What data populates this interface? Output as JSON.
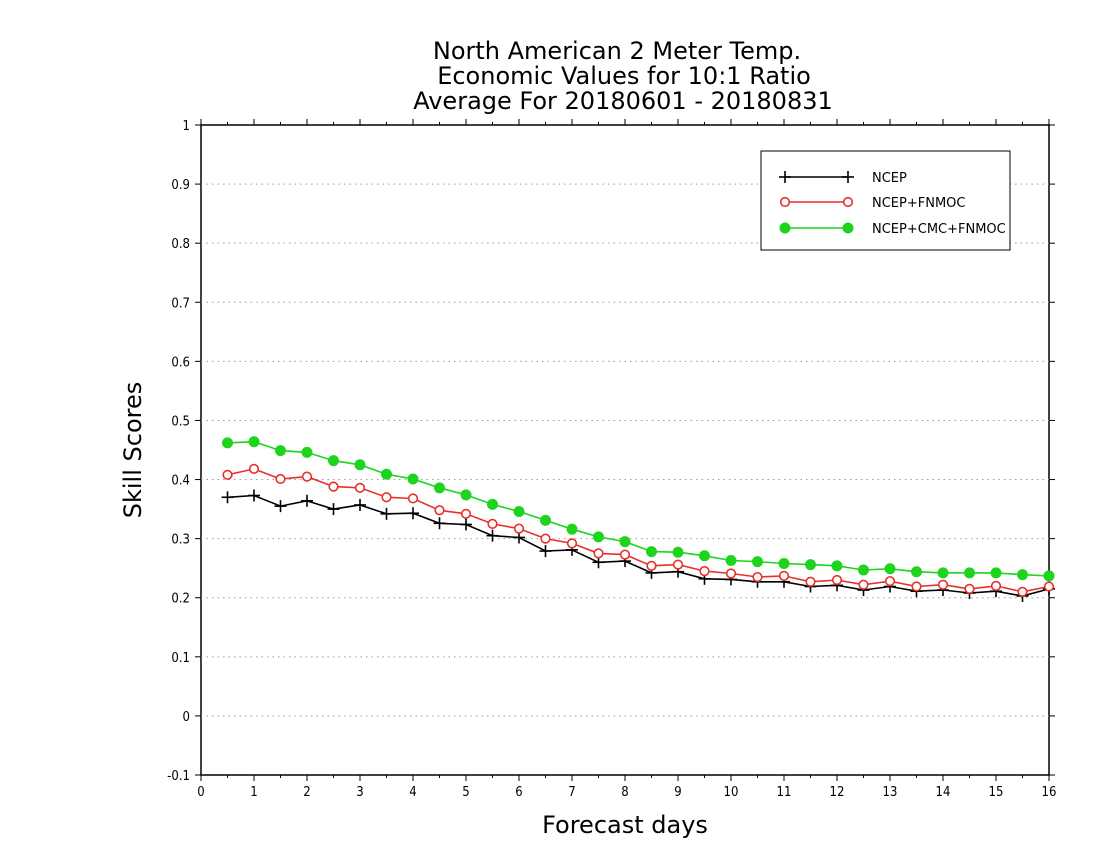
{
  "chart_data": {
    "type": "line",
    "title": [
      "North American 2 Meter Temp.",
      "Economic Values for 10:1 Ratio",
      "Average For 20180601 - 20180831"
    ],
    "xlabel": "Forecast days",
    "ylabel": "Skill Scores",
    "xlim": [
      0,
      16
    ],
    "ylim": [
      -0.1,
      1
    ],
    "xticks": [
      "0",
      "1",
      "2",
      "3",
      "4",
      "5",
      "6",
      "7",
      "8",
      "9",
      "10",
      "11",
      "12",
      "13",
      "14",
      "15",
      "16"
    ],
    "yticks": [
      "-0.1",
      "0",
      "0.1",
      "0.2",
      "0.3",
      "0.4",
      "0.5",
      "0.6",
      "0.7",
      "0.8",
      "0.9",
      "1"
    ],
    "grid": "horizontal dotted",
    "legend_position": "top-right",
    "x": [
      0.5,
      1,
      1.5,
      2,
      2.5,
      3,
      3.5,
      4,
      4.5,
      5,
      5.5,
      6,
      6.5,
      7,
      7.5,
      8,
      8.5,
      9,
      9.5,
      10,
      10.5,
      11,
      11.5,
      12,
      12.5,
      13,
      13.5,
      14,
      14.5,
      15,
      15.5,
      16
    ],
    "series": [
      {
        "name": "NCEP",
        "color": "#000000",
        "marker": "plus",
        "values": [
          0.37,
          0.373,
          0.355,
          0.364,
          0.35,
          0.357,
          0.342,
          0.343,
          0.326,
          0.324,
          0.305,
          0.302,
          0.279,
          0.281,
          0.26,
          0.262,
          0.242,
          0.244,
          0.232,
          0.231,
          0.227,
          0.227,
          0.219,
          0.221,
          0.213,
          0.219,
          0.211,
          0.213,
          0.208,
          0.211,
          0.203,
          0.215
        ]
      },
      {
        "name": "NCEP+FNMOC",
        "color": "#e8302c",
        "marker": "open-circle",
        "values": [
          0.408,
          0.418,
          0.401,
          0.405,
          0.388,
          0.386,
          0.37,
          0.368,
          0.348,
          0.342,
          0.325,
          0.317,
          0.3,
          0.292,
          0.275,
          0.273,
          0.254,
          0.256,
          0.245,
          0.241,
          0.235,
          0.237,
          0.227,
          0.23,
          0.222,
          0.228,
          0.219,
          0.222,
          0.215,
          0.22,
          0.21,
          0.219
        ]
      },
      {
        "name": "NCEP+CMC+FNMOC",
        "color": "#1ed41e",
        "marker": "filled-circle",
        "values": [
          0.462,
          0.464,
          0.449,
          0.446,
          0.432,
          0.425,
          0.409,
          0.401,
          0.386,
          0.374,
          0.358,
          0.346,
          0.331,
          0.316,
          0.303,
          0.295,
          0.278,
          0.277,
          0.271,
          0.263,
          0.261,
          0.258,
          0.256,
          0.254,
          0.247,
          0.249,
          0.244,
          0.242,
          0.242,
          0.242,
          0.239,
          0.237
        ]
      }
    ]
  }
}
